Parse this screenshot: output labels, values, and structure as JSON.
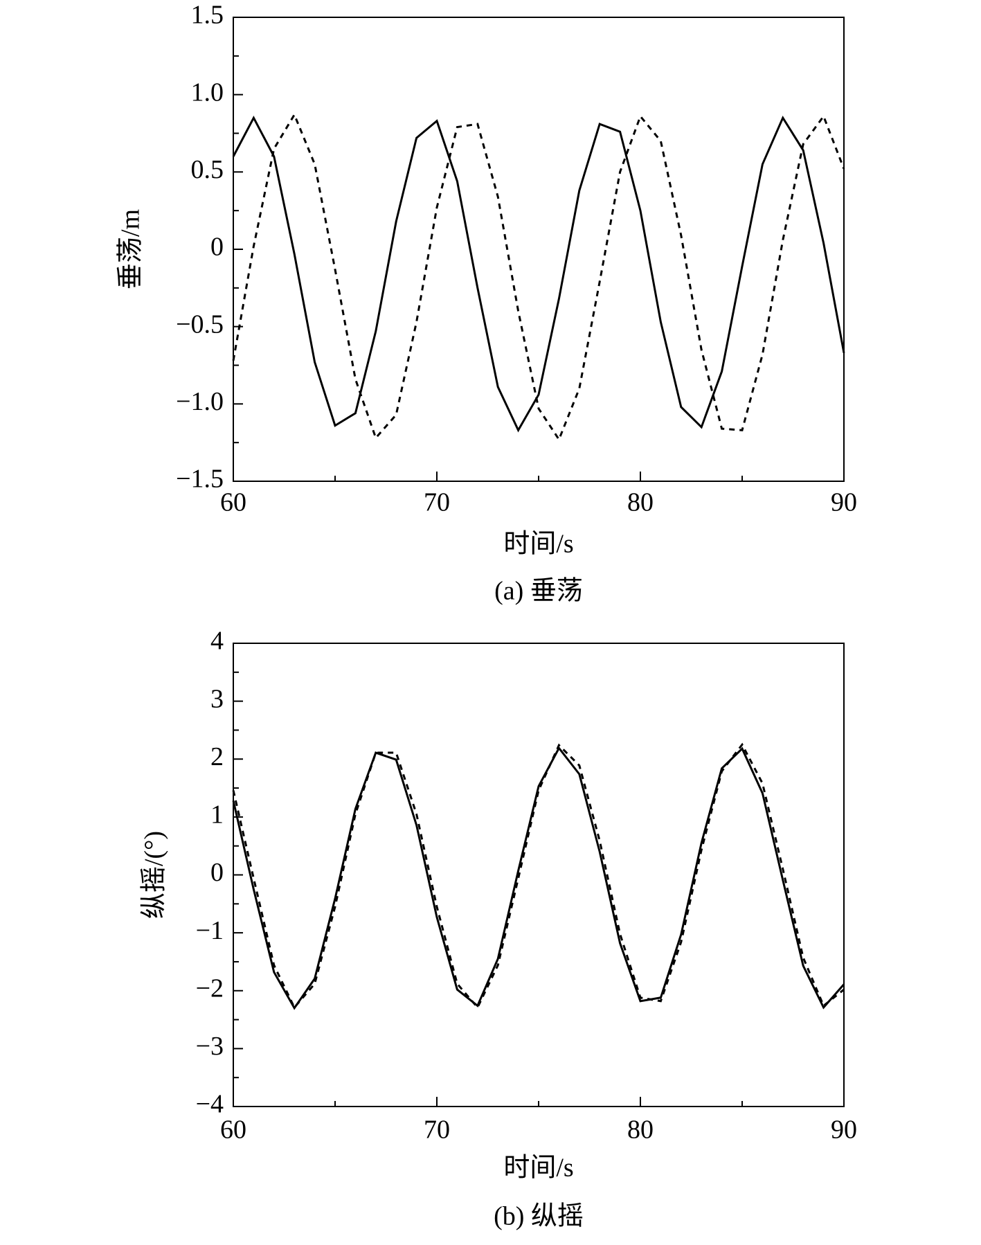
{
  "chart_data": [
    {
      "type": "line",
      "caption": "(a) 垂荡",
      "xlabel": "时间/s",
      "ylabel": "垂荡/m",
      "x": [
        60,
        61,
        62,
        63,
        64,
        65,
        66,
        67,
        68,
        69,
        70,
        71,
        72,
        73,
        74,
        75,
        76,
        77,
        78,
        79,
        80,
        81,
        82,
        83,
        84,
        85,
        86,
        87,
        88,
        89,
        90
      ],
      "series": [
        {
          "color": "#000000",
          "linestyle": "solid",
          "values": [
            0.6,
            0.85,
            0.6,
            -0.03,
            -0.73,
            -1.14,
            -1.06,
            -0.53,
            0.18,
            0.72,
            0.83,
            0.44,
            -0.25,
            -0.89,
            -1.17,
            -0.94,
            -0.32,
            0.38,
            0.81,
            0.76,
            0.25,
            -0.47,
            -1.02,
            -1.15,
            -0.79,
            -0.11,
            0.55,
            0.85,
            0.64,
            0.04,
            -0.67
          ]
        },
        {
          "color": "#000000",
          "linestyle": "dashed",
          "values": [
            -0.72,
            0.02,
            0.65,
            0.87,
            0.55,
            -0.13,
            -0.84,
            -1.22,
            -1.07,
            -0.47,
            0.27,
            0.79,
            0.81,
            0.34,
            -0.4,
            -1.03,
            -1.23,
            -0.9,
            -0.21,
            0.5,
            0.86,
            0.7,
            0.09,
            -0.65,
            -1.16,
            -1.17,
            -0.68,
            0.06,
            0.68,
            0.86,
            0.52
          ]
        }
      ],
      "xlim": [
        60,
        90
      ],
      "xticks": [
        60,
        70,
        80,
        90
      ],
      "minor_xticks": [
        65,
        75,
        85
      ],
      "ylim": [
        -1.5,
        1.5
      ],
      "yticks": [
        {
          "value": -1.5,
          "label": "−1.5"
        },
        {
          "value": -1,
          "label": "−1.0"
        },
        {
          "value": -0.5,
          "label": "−0.5"
        },
        0,
        {
          "value": 0.5,
          "label": "0.5"
        },
        {
          "value": 1,
          "label": "1.0"
        },
        1.5
      ],
      "minor_yticks": [
        -1.25,
        -0.75,
        -0.25,
        0.25,
        0.75,
        1.25
      ]
    },
    {
      "type": "line",
      "caption": "(b) 纵摇",
      "xlabel": "时间/s",
      "ylabel": "纵摇/(°)",
      "x": [
        60,
        61,
        62,
        63,
        64,
        65,
        66,
        67,
        68,
        69,
        70,
        71,
        72,
        73,
        74,
        75,
        76,
        77,
        78,
        79,
        80,
        81,
        82,
        83,
        84,
        85,
        86,
        87,
        88,
        89,
        90
      ],
      "series": [
        {
          "color": "#000000",
          "linestyle": "solid",
          "values": [
            1.28,
            -0.25,
            -1.68,
            -2.3,
            -1.79,
            -0.41,
            1.14,
            2.11,
            1.99,
            0.86,
            -0.73,
            -1.98,
            -2.26,
            -1.45,
            0.07,
            1.53,
            2.19,
            1.74,
            0.4,
            -1.18,
            -2.18,
            -2.12,
            -1.03,
            0.55,
            1.84,
            2.18,
            1.41,
            -0.09,
            -1.57,
            -2.29,
            -1.89
          ]
        },
        {
          "color": "#000000",
          "linestyle": "dashed",
          "values": [
            1.46,
            -0.06,
            -1.56,
            -2.29,
            -1.88,
            -0.55,
            1.05,
            2.11,
            2.11,
            1.05,
            -0.55,
            -1.88,
            -2.29,
            -1.56,
            -0.06,
            1.46,
            2.24,
            1.89,
            0.59,
            -1.02,
            -2.12,
            -2.18,
            -1.16,
            0.43,
            1.79,
            2.25,
            1.58,
            0.1,
            -1.43,
            -2.26,
            -1.98
          ]
        }
      ],
      "xlim": [
        60,
        90
      ],
      "xticks": [
        60,
        70,
        80,
        90
      ],
      "minor_xticks": [
        65,
        75,
        85
      ],
      "ylim": [
        -4,
        4
      ],
      "yticks": [
        {
          "value": -4,
          "label": "−4"
        },
        {
          "value": -3,
          "label": "−3"
        },
        {
          "value": -2,
          "label": "−2"
        },
        {
          "value": -1,
          "label": "−1"
        },
        0,
        1,
        2,
        3,
        4
      ],
      "minor_yticks": [
        -3.5,
        -2.5,
        -1.5,
        -0.5,
        0.5,
        1.5,
        2.5,
        3.5
      ]
    }
  ]
}
